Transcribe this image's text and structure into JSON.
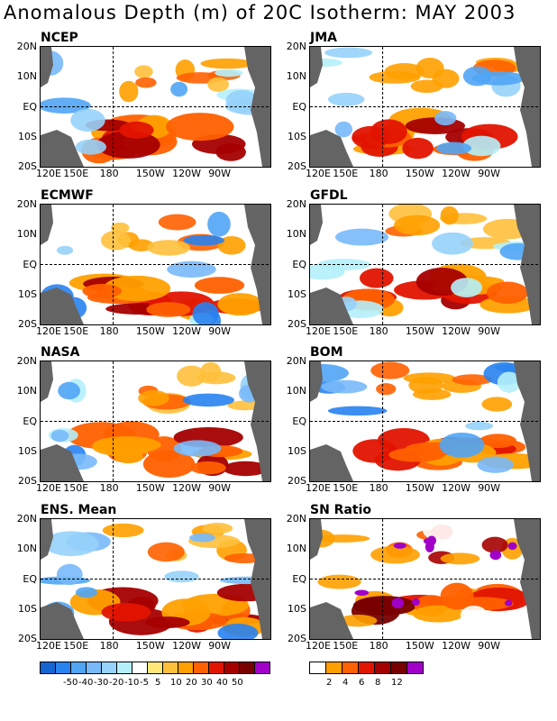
{
  "title": "Anomalous Depth (m) of 20C Isotherm: MAY 2003",
  "axes": {
    "x_ticks": [
      "120E",
      "150E",
      "180",
      "150W",
      "120W",
      "90W"
    ],
    "y_ticks": [
      "20N",
      "10N",
      "EQ",
      "10S",
      "20S"
    ]
  },
  "chart_data": [
    {
      "type": "heatmap",
      "title": "NCEP",
      "lon_range": [
        "120E",
        "70W"
      ],
      "lat_range": [
        "20S",
        "20N"
      ]
    },
    {
      "type": "heatmap",
      "title": "JMA",
      "lon_range": [
        "120E",
        "70W"
      ],
      "lat_range": [
        "20S",
        "20N"
      ]
    },
    {
      "type": "heatmap",
      "title": "ECMWF",
      "lon_range": [
        "120E",
        "70W"
      ],
      "lat_range": [
        "20S",
        "20N"
      ]
    },
    {
      "type": "heatmap",
      "title": "GFDL",
      "lon_range": [
        "120E",
        "70W"
      ],
      "lat_range": [
        "20S",
        "20N"
      ]
    },
    {
      "type": "heatmap",
      "title": "NASA",
      "lon_range": [
        "120E",
        "70W"
      ],
      "lat_range": [
        "20S",
        "20N"
      ]
    },
    {
      "type": "heatmap",
      "title": "BOM",
      "lon_range": [
        "120E",
        "70W"
      ],
      "lat_range": [
        "20S",
        "20N"
      ]
    },
    {
      "type": "heatmap",
      "title": "ENS. Mean",
      "lon_range": [
        "120E",
        "70W"
      ],
      "lat_range": [
        "20S",
        "20N"
      ]
    },
    {
      "type": "heatmap",
      "title": "SN Ratio",
      "lon_range": [
        "120E",
        "70W"
      ],
      "lat_range": [
        "20S",
        "20N"
      ]
    }
  ],
  "colorbar_anomaly": {
    "labels": [
      "-50",
      "-40",
      "-30",
      "-20",
      "-10",
      "-5",
      "5",
      "10",
      "20",
      "30",
      "40",
      "50"
    ],
    "colors": [
      "#1464d2",
      "#2882f0",
      "#50a5f5",
      "#78b9fa",
      "#96d2fa",
      "#b4f0fa",
      "#ffffff",
      "#ffe878",
      "#ffc03c",
      "#ffa000",
      "#ff6000",
      "#e11400",
      "#a50000",
      "#780000",
      "#a000c8"
    ]
  },
  "colorbar_sn": {
    "labels": [
      "2",
      "4",
      "6",
      "8",
      "12"
    ],
    "colors": [
      "#ffffff",
      "#ffa000",
      "#ff6000",
      "#e11400",
      "#a50000",
      "#780000",
      "#a000c8"
    ]
  },
  "colors": {
    "land": "#646464",
    "frame": "#000000"
  }
}
